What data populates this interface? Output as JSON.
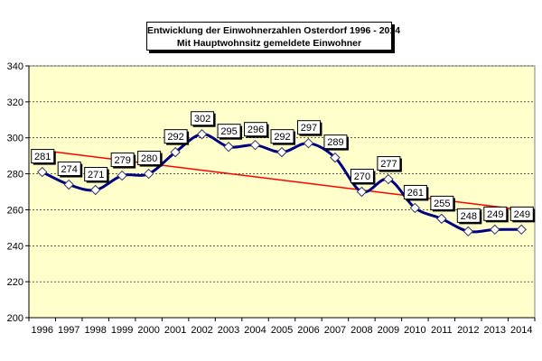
{
  "chart_data": {
    "type": "line",
    "title": "Entwicklung der Einwohnerzahlen Osterdorf 1996 - 2014",
    "subtitle": "Mit Hauptwohnsitz gemeldete Einwohner",
    "categories": [
      "1996",
      "1997",
      "1998",
      "1999",
      "2000",
      "2001",
      "2002",
      "2003",
      "2004",
      "2005",
      "2006",
      "2007",
      "2008",
      "2009",
      "2010",
      "2011",
      "2012",
      "2013",
      "2014"
    ],
    "series": [
      {
        "values": [
          281,
          274,
          271,
          279,
          280,
          292,
          302,
          295,
          296,
          292,
          297,
          289,
          270,
          277,
          261,
          255,
          248,
          249,
          249
        ]
      }
    ],
    "trendline": {
      "start": 293,
      "end": 260
    },
    "ylim": [
      200,
      340
    ],
    "yticks": [
      200,
      220,
      240,
      260,
      280,
      300,
      320,
      340
    ],
    "grid": true,
    "legend": "none",
    "colors": {
      "plot_background": "#FFFFCC",
      "series": "#000080",
      "trendline": "#FF0000",
      "gridline": "#000000"
    }
  }
}
